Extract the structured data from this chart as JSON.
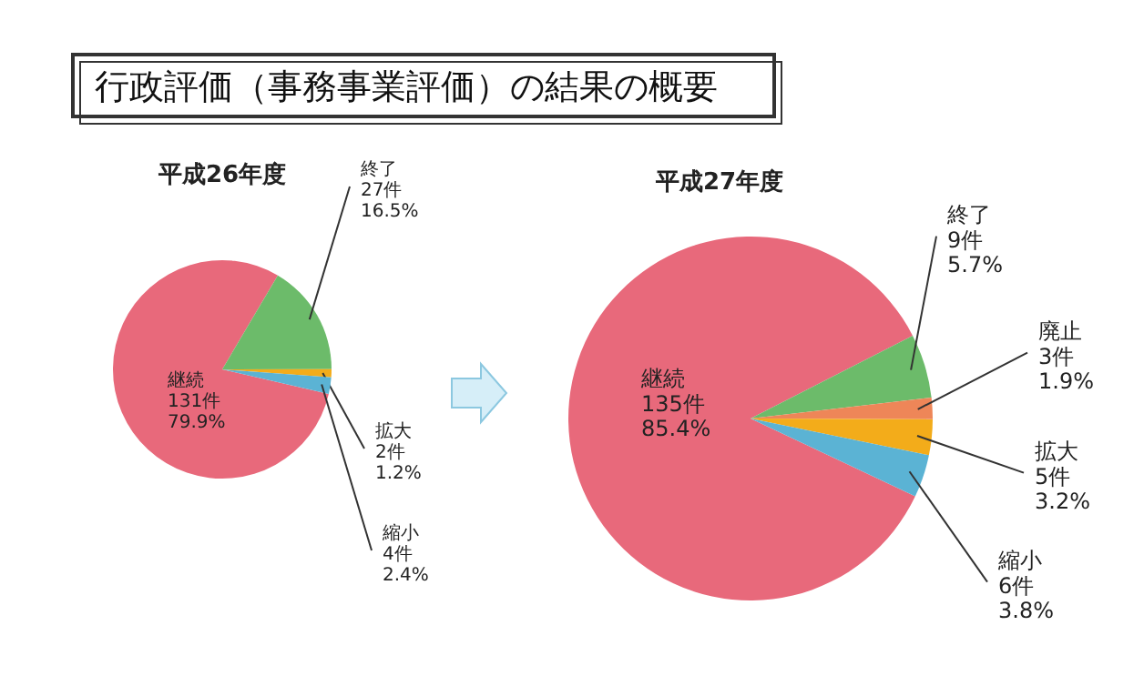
{
  "chart_data": [
    {
      "type": "pie",
      "title": "平成26年度",
      "annotations": [
        "行政評価（事務事業評価）の結果の概要"
      ],
      "categories": [
        "継続",
        "終了",
        "拡大",
        "縮小"
      ],
      "values": [
        131,
        27,
        2,
        4
      ],
      "value_labels": [
        "131件 79.9%",
        "27件 16.5%",
        "2件 1.2%",
        "4件 2.4%"
      ],
      "colors": [
        "#e8697b",
        "#6cbb6a",
        "#f3ac1a",
        "#5bb3d4"
      ]
    },
    {
      "type": "pie",
      "title": "平成27年度",
      "categories": [
        "継続",
        "終了",
        "廃止",
        "拡大",
        "縮小"
      ],
      "values": [
        135,
        9,
        3,
        5,
        6
      ],
      "value_labels": [
        "135件 85.4%",
        "9件 5.7%",
        "3件 1.9%",
        "5件 3.2%",
        "6件 3.8%"
      ],
      "colors": [
        "#e8697b",
        "#6cbb6a",
        "#ee8658",
        "#f3ac1a",
        "#5bb3d4"
      ]
    }
  ]
}
